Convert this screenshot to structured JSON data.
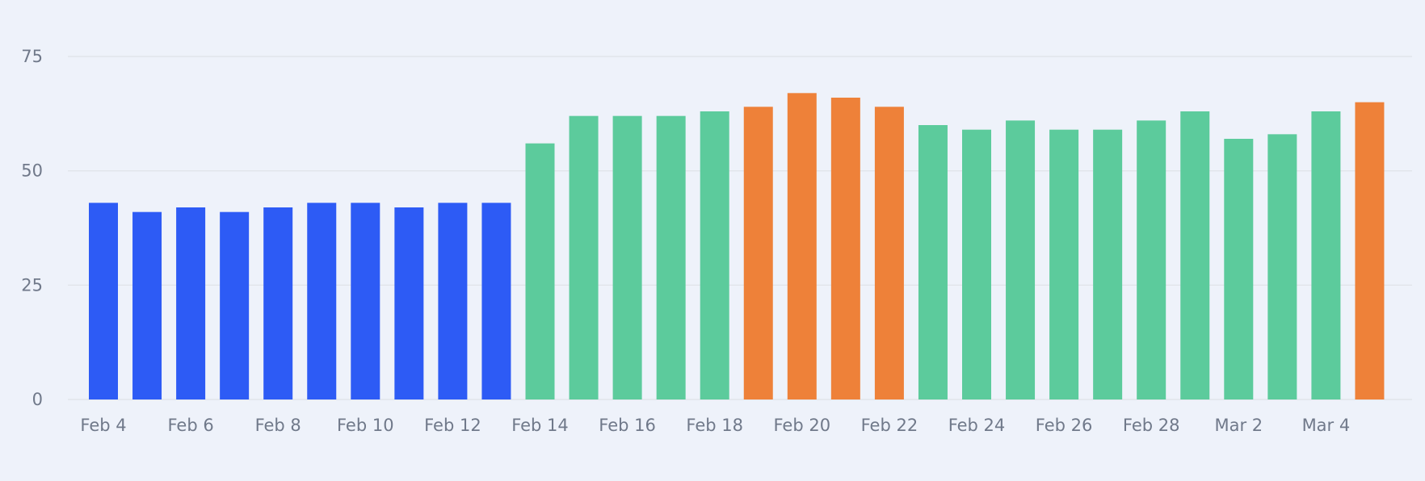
{
  "chart_data": {
    "type": "bar",
    "categories": [
      "Feb 4",
      "Feb 5",
      "Feb 6",
      "Feb 7",
      "Feb 8",
      "Feb 9",
      "Feb 10",
      "Feb 11",
      "Feb 12",
      "Feb 13",
      "Feb 14",
      "Feb 15",
      "Feb 16",
      "Feb 17",
      "Feb 18",
      "Feb 19",
      "Feb 20",
      "Feb 21",
      "Feb 22",
      "Feb 23",
      "Feb 24",
      "Feb 25",
      "Feb 26",
      "Feb 27",
      "Feb 28",
      "Mar 1",
      "Mar 2",
      "Mar 3",
      "Mar 4",
      "Mar 5"
    ],
    "values": [
      43,
      41,
      42,
      41,
      42,
      43,
      43,
      42,
      43,
      43,
      56,
      62,
      62,
      62,
      63,
      64,
      67,
      66,
      64,
      60,
      59,
      61,
      59,
      59,
      61,
      63,
      57,
      58,
      63,
      65
    ],
    "bar_colors": [
      "#2d5bf5",
      "#2d5bf5",
      "#2d5bf5",
      "#2d5bf5",
      "#2d5bf5",
      "#2d5bf5",
      "#2d5bf5",
      "#2d5bf5",
      "#2d5bf5",
      "#2d5bf5",
      "#5ccb9c",
      "#5ccb9c",
      "#5ccb9c",
      "#5ccb9c",
      "#5ccb9c",
      "#ee8139",
      "#ee8139",
      "#ee8139",
      "#ee8139",
      "#5ccb9c",
      "#5ccb9c",
      "#5ccb9c",
      "#5ccb9c",
      "#5ccb9c",
      "#5ccb9c",
      "#5ccb9c",
      "#5ccb9c",
      "#5ccb9c",
      "#5ccb9c",
      "#ee8139"
    ],
    "x_tick_labels": [
      "Feb 4",
      "Feb 6",
      "Feb 8",
      "Feb 10",
      "Feb 12",
      "Feb 14",
      "Feb 16",
      "Feb 18",
      "Feb 20",
      "Feb 22",
      "Feb 24",
      "Feb 26",
      "Feb 28",
      "Mar 2",
      "Mar 4"
    ],
    "y_ticks": [
      0,
      25,
      50,
      75
    ],
    "ylim": [
      0,
      75
    ],
    "grid": true,
    "title": "",
    "xlabel": "",
    "ylabel": ""
  }
}
